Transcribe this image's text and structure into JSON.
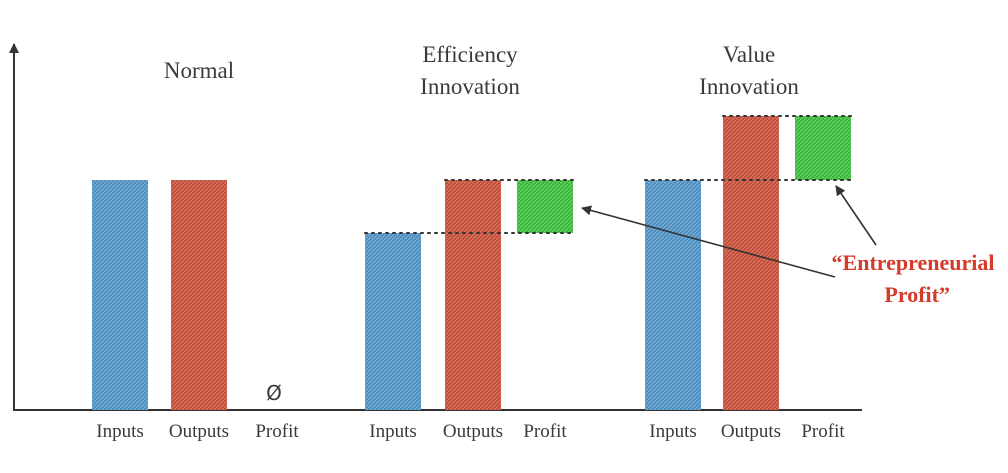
{
  "diagram": {
    "panels": [
      {
        "title_lines": [
          "Normal"
        ],
        "bars": [
          {
            "label": "Inputs",
            "base": 0,
            "value": 230,
            "kind": "inputs"
          },
          {
            "label": "Outputs",
            "base": 0,
            "value": 230,
            "kind": "outputs"
          },
          {
            "label": "Profit",
            "base": 0,
            "value": 0,
            "kind": "profit",
            "empty_symbol": "Ø"
          }
        ]
      },
      {
        "title_lines": [
          "Efficiency",
          "Innovation"
        ],
        "bars": [
          {
            "label": "Inputs",
            "base": 0,
            "value": 177,
            "kind": "inputs"
          },
          {
            "label": "Outputs",
            "base": 0,
            "value": 230,
            "kind": "outputs"
          },
          {
            "label": "Profit",
            "base": 177,
            "value": 53,
            "kind": "profit"
          }
        ]
      },
      {
        "title_lines": [
          "Value",
          "Innovation"
        ],
        "bars": [
          {
            "label": "Inputs",
            "base": 0,
            "value": 230,
            "kind": "inputs"
          },
          {
            "label": "Outputs",
            "base": 0,
            "value": 294,
            "kind": "outputs"
          },
          {
            "label": "Profit",
            "base": 230,
            "value": 64,
            "kind": "profit"
          }
        ]
      }
    ],
    "callout": {
      "lines": [
        "“Entrepreneurial",
        "Profit”"
      ],
      "color": "#d63a2a"
    },
    "colors": {
      "inputs": "#4f8fc0",
      "outputs": "#c0503c",
      "profit": "#3db53d",
      "axis": "#333333"
    }
  }
}
